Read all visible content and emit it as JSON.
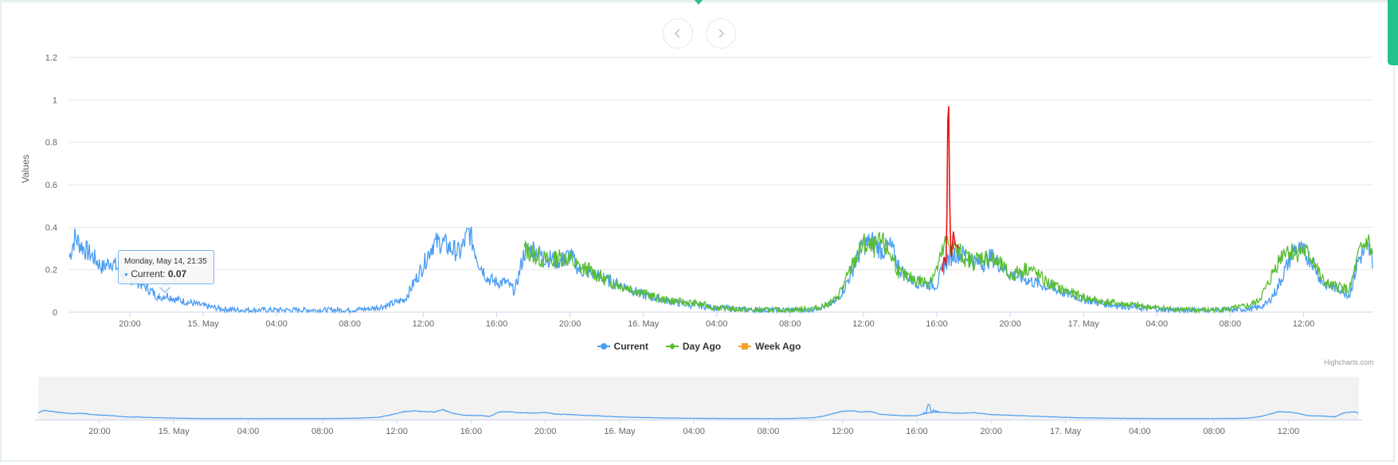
{
  "nav": {
    "prev_icon": "chevron-left-icon",
    "next_icon": "chevron-right-icon"
  },
  "chart_data": {
    "type": "line",
    "title": "",
    "xlabel": "",
    "ylabel": "Values",
    "ylim": [
      0,
      1.2
    ],
    "yticks": [
      "0",
      "0.2",
      "0.4",
      "0.6",
      "0.8",
      "1",
      "1.2"
    ],
    "xticks": [
      "20:00",
      "15. May",
      "04:00",
      "08:00",
      "12:00",
      "16:00",
      "20:00",
      "16. May",
      "04:00",
      "08:00",
      "12:00",
      "16:00",
      "20:00",
      "17. May",
      "04:00",
      "08:00",
      "12:00"
    ],
    "x_unit": "hours since 14 May 00:00",
    "xlim": [
      16.7,
      87.8
    ],
    "grid": true,
    "legend_position": "bottom-center",
    "colors": {
      "current": "#4a9df3",
      "day_ago": "#58bd31",
      "week_ago": "#f0a02b",
      "highlight": "#ee1111"
    },
    "series": [
      {
        "name": "Current",
        "symbol": "circle",
        "color": "#4a9df3",
        "x": [
          16.7,
          17.0,
          17.5,
          18.0,
          18.5,
          19.0,
          19.5,
          20.0,
          20.5,
          21.0,
          21.58,
          22.0,
          22.5,
          23.0,
          24.0,
          25.0,
          26.0,
          27.0,
          28.0,
          29.0,
          30.0,
          31.0,
          32.0,
          33.0,
          34.0,
          35.0,
          35.5,
          36.0,
          36.5,
          37.0,
          37.5,
          38.0,
          38.5,
          39.0,
          39.5,
          40.0,
          40.5,
          41.0,
          41.5,
          42.0,
          42.5,
          43.0,
          43.5,
          44.0,
          44.5,
          45.0,
          46.0,
          47.0,
          48.0,
          49.0,
          50.0,
          51.0,
          52.0,
          53.0,
          54.0,
          55.0,
          56.0,
          57.0,
          57.5,
          58.0,
          58.5,
          59.0,
          59.5,
          60.0,
          60.5,
          61.0,
          61.5,
          62.0,
          62.5,
          63.0,
          63.5,
          64.0,
          64.5,
          65.0,
          65.5,
          66.0,
          66.5,
          67.0,
          67.5,
          68.0,
          69.0,
          70.0,
          71.0,
          72.0,
          73.0,
          74.0,
          75.0,
          76.0,
          77.0,
          78.0,
          79.0,
          80.0,
          81.0,
          81.5,
          82.0,
          82.5,
          83.0,
          83.5,
          84.0,
          84.5,
          85.0,
          85.5,
          86.0,
          86.5,
          87.0,
          87.5,
          87.8
        ],
        "y": [
          0.26,
          0.35,
          0.3,
          0.26,
          0.21,
          0.24,
          0.19,
          0.16,
          0.14,
          0.11,
          0.07,
          0.08,
          0.06,
          0.05,
          0.03,
          0.015,
          0.01,
          0.01,
          0.01,
          0.01,
          0.01,
          0.01,
          0.01,
          0.015,
          0.03,
          0.06,
          0.14,
          0.22,
          0.32,
          0.33,
          0.3,
          0.28,
          0.38,
          0.24,
          0.16,
          0.14,
          0.14,
          0.1,
          0.28,
          0.3,
          0.26,
          0.25,
          0.24,
          0.27,
          0.2,
          0.19,
          0.15,
          0.12,
          0.08,
          0.06,
          0.04,
          0.03,
          0.02,
          0.015,
          0.01,
          0.01,
          0.01,
          0.01,
          0.02,
          0.03,
          0.05,
          0.12,
          0.22,
          0.32,
          0.33,
          0.29,
          0.31,
          0.2,
          0.16,
          0.14,
          0.13,
          0.13,
          0.24,
          0.28,
          0.27,
          0.24,
          0.23,
          0.26,
          0.22,
          0.18,
          0.15,
          0.12,
          0.09,
          0.06,
          0.04,
          0.03,
          0.02,
          0.015,
          0.01,
          0.01,
          0.01,
          0.01,
          0.015,
          0.02,
          0.04,
          0.1,
          0.2,
          0.3,
          0.28,
          0.24,
          0.14,
          0.12,
          0.11,
          0.08,
          0.25,
          0.3,
          0.24
        ]
      },
      {
        "name": "Day Ago",
        "symbol": "diamond",
        "color": "#58bd31",
        "x": [
          41.5,
          42.0,
          42.5,
          43.0,
          43.5,
          44.0,
          44.5,
          45.0,
          46.0,
          47.0,
          48.0,
          49.0,
          50.0,
          51.0,
          52.0,
          53.0,
          54.0,
          55.0,
          56.0,
          57.0,
          57.5,
          58.0,
          58.5,
          59.0,
          59.5,
          60.0,
          60.5,
          61.0,
          61.5,
          62.0,
          62.5,
          63.0,
          63.5,
          64.0,
          64.5,
          65.0,
          65.5,
          66.0,
          66.5,
          67.0,
          67.5,
          68.0,
          69.0,
          70.0,
          71.0,
          72.0,
          73.0,
          74.0,
          75.0,
          76.0,
          77.0,
          78.0,
          79.0,
          80.0,
          81.0,
          81.5,
          82.0,
          82.5,
          83.0,
          83.5,
          84.0,
          84.5,
          85.0,
          85.5,
          86.0,
          86.5,
          87.0,
          87.5,
          87.8
        ],
        "y": [
          0.3,
          0.27,
          0.25,
          0.24,
          0.26,
          0.25,
          0.21,
          0.2,
          0.15,
          0.12,
          0.09,
          0.06,
          0.05,
          0.04,
          0.02,
          0.015,
          0.01,
          0.01,
          0.01,
          0.015,
          0.02,
          0.035,
          0.06,
          0.14,
          0.24,
          0.32,
          0.3,
          0.33,
          0.27,
          0.18,
          0.16,
          0.15,
          0.14,
          0.2,
          0.33,
          0.3,
          0.26,
          0.24,
          0.26,
          0.25,
          0.22,
          0.17,
          0.21,
          0.14,
          0.1,
          0.07,
          0.05,
          0.04,
          0.03,
          0.02,
          0.015,
          0.01,
          0.01,
          0.015,
          0.03,
          0.05,
          0.12,
          0.22,
          0.3,
          0.28,
          0.29,
          0.25,
          0.15,
          0.12,
          0.12,
          0.1,
          0.27,
          0.34,
          0.25
        ]
      },
      {
        "name": "Week Ago",
        "symbol": "square",
        "color": "#f0a02b",
        "x": [],
        "y": []
      }
    ],
    "highlight_segment": {
      "x": [
        64.3,
        64.4,
        64.5,
        64.55,
        64.6,
        64.65,
        64.7,
        64.75,
        64.8,
        64.9,
        65.0,
        65.2
      ],
      "y": [
        0.19,
        0.26,
        0.22,
        0.45,
        0.9,
        0.97,
        0.55,
        0.33,
        0.26,
        0.38,
        0.32,
        0.3
      ]
    },
    "tooltip": {
      "date": "Monday, May 14, 21:35",
      "series": "Current",
      "value": "0.07"
    },
    "credits": "Highcharts.com"
  }
}
